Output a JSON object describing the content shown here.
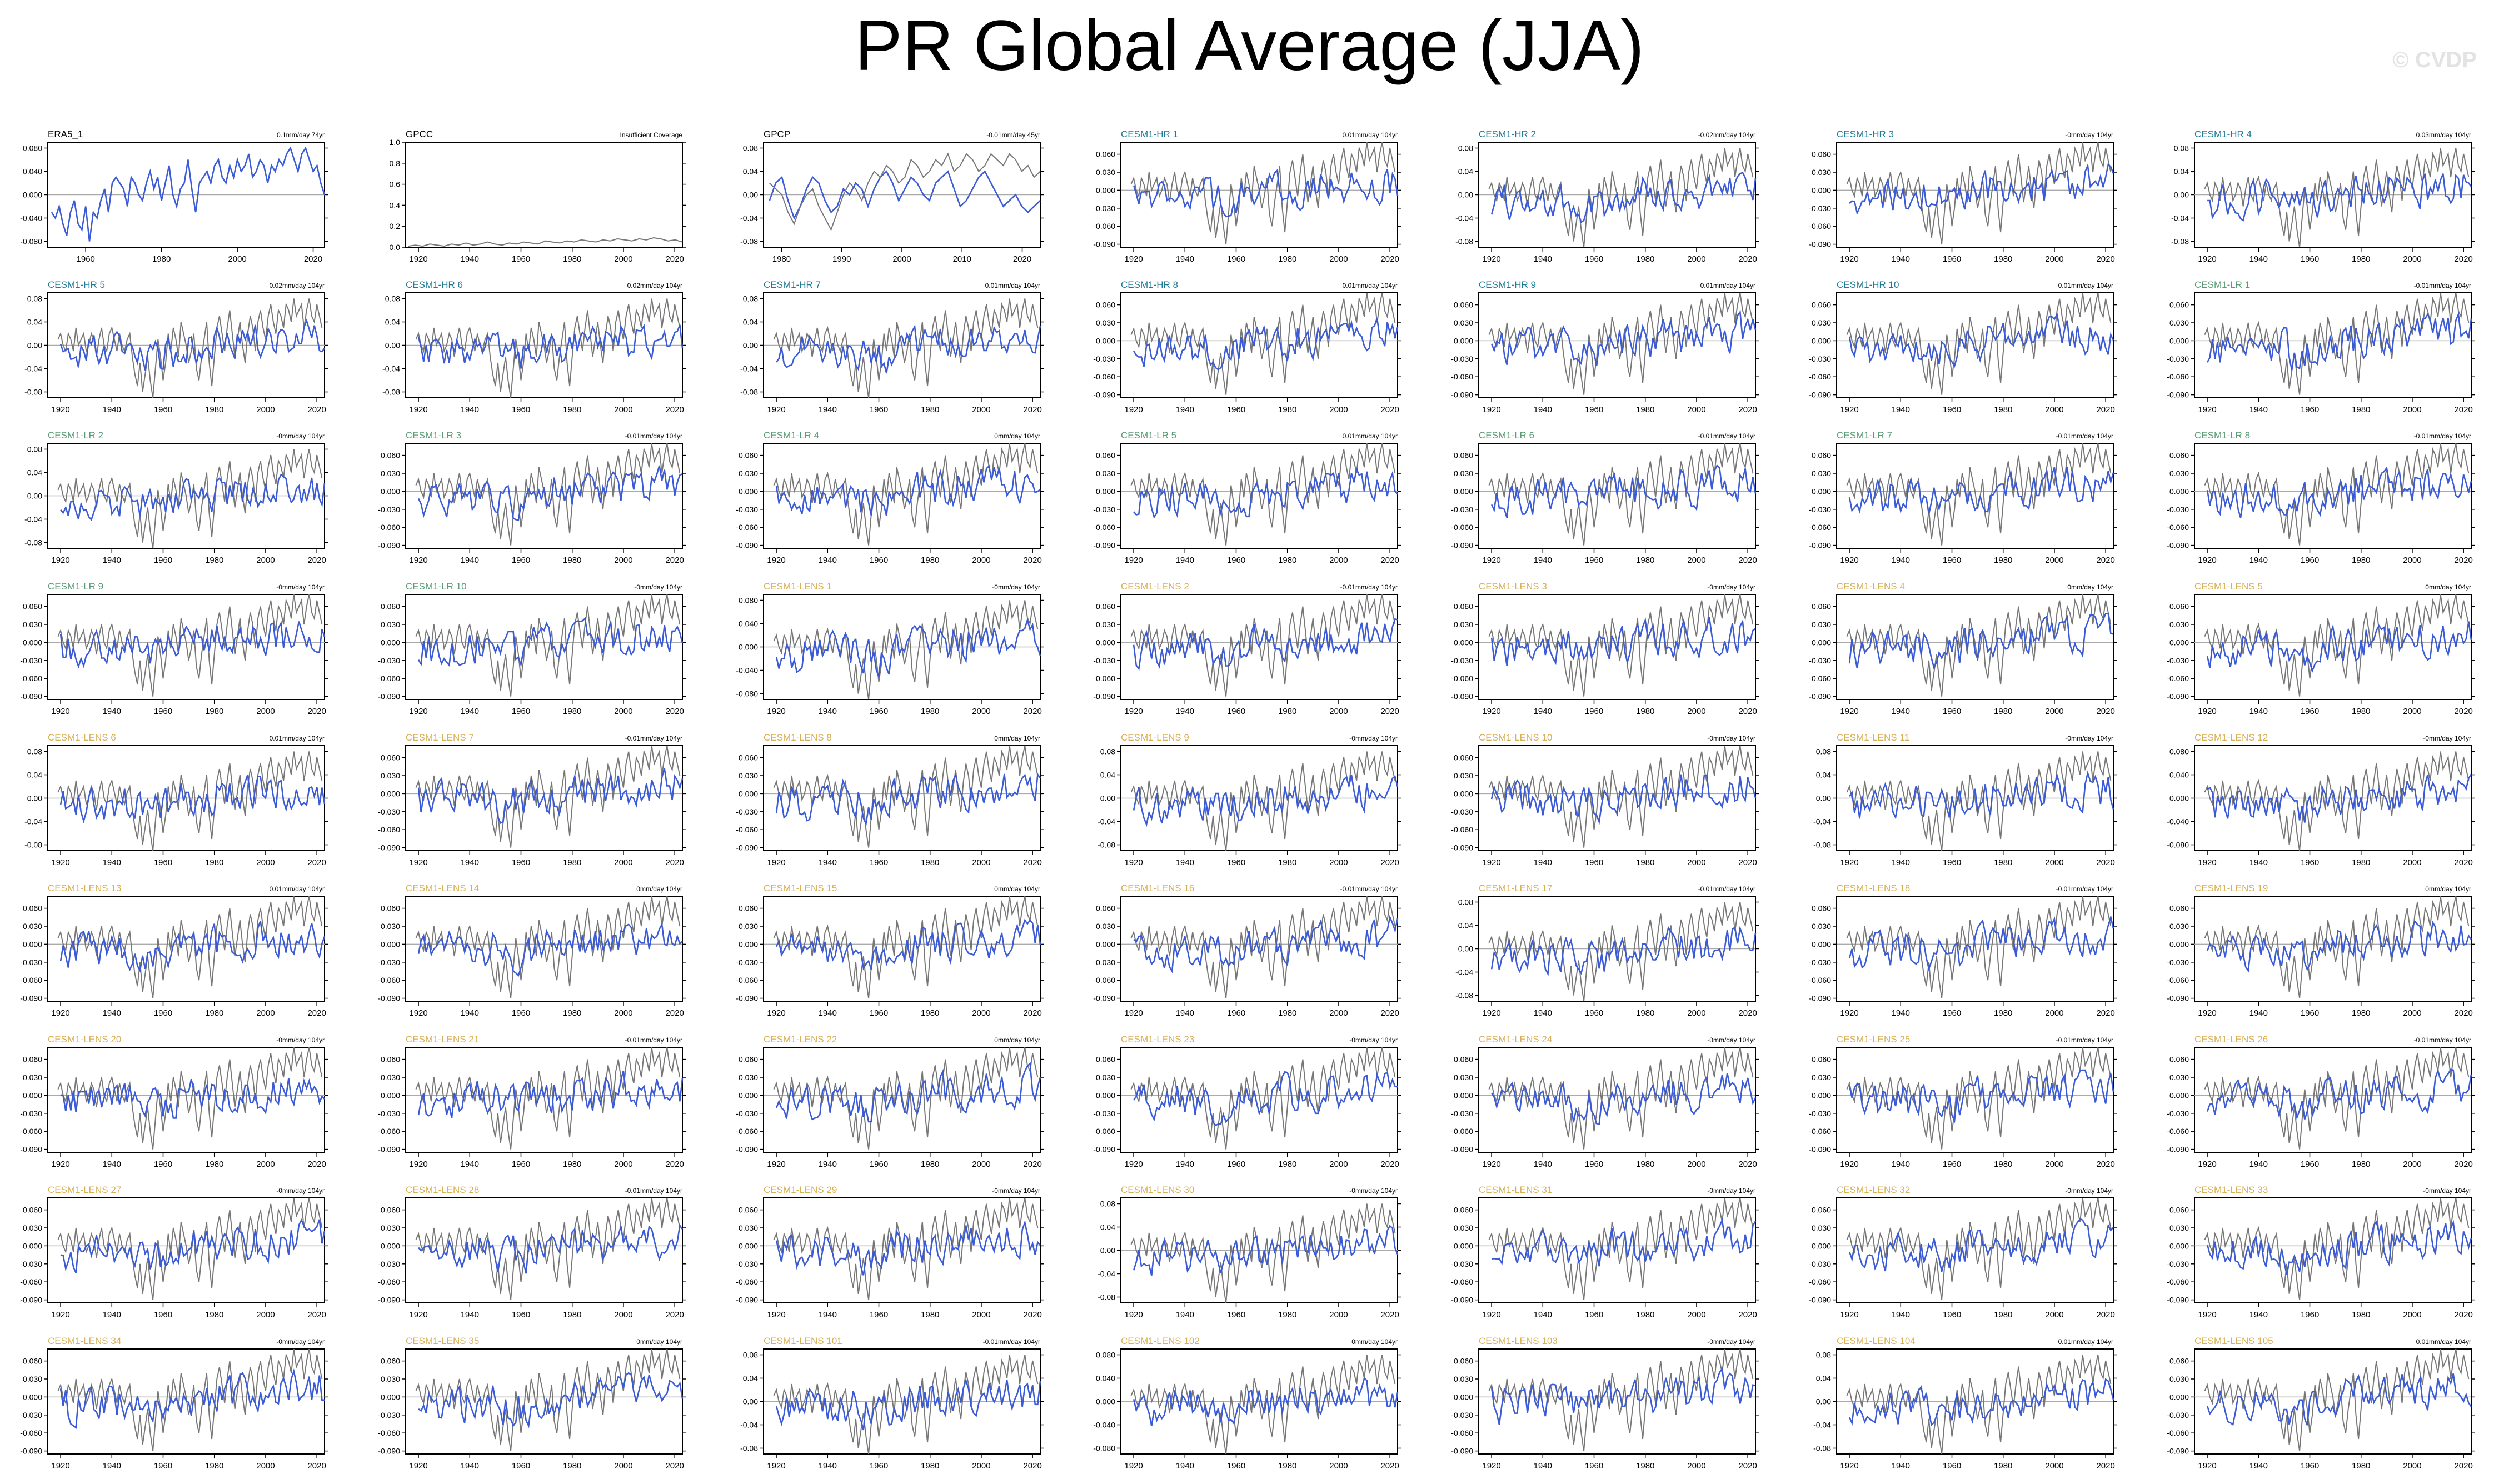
{
  "title": "PR Global Average (JJA)",
  "watermark": "© CVDP",
  "colors": {
    "model": "#3b5bd6",
    "obs": "#777777",
    "zero": "#aaaaaa",
    "label_obs": "#000000",
    "label_hr": "#1f7a96",
    "label_lr": "#5a9a74",
    "label_lens": "#d8b055"
  },
  "chart_data": [
    {
      "type": "line",
      "panel_title": "ERA5_1",
      "label_group": "obs",
      "trend": "0.1mm/day 74yr",
      "xticks": [
        1960,
        1980,
        2000,
        2020
      ],
      "xlim": [
        1950,
        2023
      ],
      "yticks": [
        "0.080",
        "0.040",
        "0.000",
        "-0.040",
        "-0.080"
      ],
      "ylim": [
        -0.09,
        0.09
      ],
      "series": [
        {
          "role": "model",
          "values": [
            -0.03,
            -0.04,
            -0.02,
            -0.05,
            -0.07,
            -0.03,
            -0.01,
            -0.05,
            -0.06,
            -0.02,
            -0.08,
            -0.03,
            -0.04,
            -0.01,
            0.01,
            -0.03,
            0.02,
            0.03,
            0.02,
            0.01,
            -0.02,
            0.03,
            0.02,
            0.0,
            -0.01,
            0.02,
            0.04,
            0.01,
            0.03,
            -0.01,
            0.02,
            0.05,
            0.0,
            -0.02,
            0.01,
            0.02,
            0.06,
            0.01,
            -0.03,
            0.02,
            0.03,
            0.04,
            0.02,
            0.05,
            0.06,
            0.03,
            0.02,
            0.05,
            0.03,
            0.06,
            0.04,
            0.05,
            0.07,
            0.03,
            0.04,
            0.06,
            0.05,
            0.02,
            0.05,
            0.04,
            0.06,
            0.05,
            0.07,
            0.08,
            0.06,
            0.04,
            0.07,
            0.08,
            0.06,
            0.04,
            0.05,
            0.02,
            0.0
          ]
        }
      ]
    },
    {
      "type": "line",
      "panel_title": "GPCC",
      "label_group": "obs",
      "trend": "Insufficient Coverage",
      "xticks": [
        1920,
        1940,
        1960,
        1980,
        2000,
        2020
      ],
      "xlim": [
        1915,
        2023
      ],
      "yticks": [
        "1.0",
        "0.8",
        "0.6",
        "0.4",
        "0.2",
        "0.0"
      ],
      "ylim": [
        0,
        1
      ],
      "series": [
        {
          "role": "obs",
          "values": [
            0.01,
            0.02,
            0.01,
            0.03,
            0.02,
            0.01,
            0.03,
            0.02,
            0.04,
            0.02,
            0.03,
            0.05,
            0.03,
            0.02,
            0.04,
            0.03,
            0.05,
            0.04,
            0.03,
            0.06,
            0.05,
            0.04,
            0.06,
            0.05,
            0.07,
            0.06,
            0.05,
            0.07,
            0.06,
            0.08,
            0.07,
            0.06,
            0.08,
            0.07,
            0.09,
            0.08,
            0.06,
            0.07,
            0.05
          ]
        }
      ]
    },
    {
      "type": "line",
      "panel_title": "GPCP",
      "label_group": "obs",
      "trend": "-0.01mm/day 45yr",
      "xticks": [
        1980,
        1990,
        2000,
        2010,
        2020
      ],
      "xlim": [
        1977,
        2023
      ],
      "yticks": [
        "0.08",
        "0.04",
        "0.00",
        "-0.04",
        "-0.08"
      ],
      "ylim": [
        -0.09,
        0.09
      ],
      "series": [
        {
          "role": "model",
          "values": [
            -0.01,
            0.02,
            0.03,
            -0.01,
            -0.04,
            -0.02,
            0.01,
            0.03,
            0.02,
            -0.01,
            -0.03,
            -0.02,
            0.01,
            0.0,
            0.02,
            0.01,
            -0.02,
            0.01,
            0.03,
            0.04,
            0.02,
            -0.01,
            0.01,
            0.03,
            0.02,
            0.0,
            -0.01,
            0.02,
            0.03,
            0.04,
            0.01,
            -0.02,
            -0.01,
            0.01,
            0.03,
            0.04,
            0.02,
            0.0,
            -0.02,
            -0.01,
            0.0,
            -0.02,
            -0.03,
            -0.02,
            -0.01
          ]
        },
        {
          "role": "obs",
          "values": [
            0.02,
            0.01,
            0.0,
            -0.03,
            -0.05,
            -0.02,
            0.0,
            0.01,
            -0.02,
            -0.04,
            -0.06,
            -0.03,
            0.0,
            0.02,
            0.01,
            -0.01,
            0.02,
            0.04,
            0.03,
            0.05,
            0.04,
            0.02,
            0.03,
            0.06,
            0.05,
            0.03,
            0.04,
            0.06,
            0.05,
            0.07,
            0.04,
            0.05,
            0.07,
            0.06,
            0.04,
            0.05,
            0.07,
            0.06,
            0.05,
            0.07,
            0.06,
            0.04,
            0.05,
            0.03,
            0.04
          ]
        }
      ]
    }
  ],
  "panel_titles": [
    "ERA5_1",
    "GPCC",
    "GPCP",
    "CESM1-HR 1",
    "CESM1-HR 2",
    "CESM1-HR 3",
    "CESM1-HR 4",
    "CESM1-HR 5",
    "CESM1-HR 6",
    "CESM1-HR 7",
    "CESM1-HR 8",
    "CESM1-HR 9",
    "CESM1-HR 10",
    "CESM1-LR 1",
    "CESM1-LR 2",
    "CESM1-LR 3",
    "CESM1-LR 4",
    "CESM1-LR 5",
    "CESM1-LR 6",
    "CESM1-LR 7",
    "CESM1-LR 8",
    "CESM1-LR 9",
    "CESM1-LR 10",
    "CESM1-LENS 1",
    "CESM1-LENS 2",
    "CESM1-LENS 3",
    "CESM1-LENS 4",
    "CESM1-LENS 5",
    "CESM1-LENS 6",
    "CESM1-LENS 7",
    "CESM1-LENS 8",
    "CESM1-LENS 9",
    "CESM1-LENS 10",
    "CESM1-LENS 11",
    "CESM1-LENS 12",
    "CESM1-LENS 13",
    "CESM1-LENS 14",
    "CESM1-LENS 15",
    "CESM1-LENS 16",
    "CESM1-LENS 17",
    "CESM1-LENS 18",
    "CESM1-LENS 19",
    "CESM1-LENS 20",
    "CESM1-LENS 21",
    "CESM1-LENS 22",
    "CESM1-LENS 23",
    "CESM1-LENS 24",
    "CESM1-LENS 25",
    "CESM1-LENS 26",
    "CESM1-LENS 27",
    "CESM1-LENS 28",
    "CESM1-LENS 29",
    "CESM1-LENS 30",
    "CESM1-LENS 31",
    "CESM1-LENS 32",
    "CESM1-LENS 33",
    "CESM1-LENS 34",
    "CESM1-LENS 35",
    "CESM1-LENS 101",
    "CESM1-LENS 102",
    "CESM1-LENS 103",
    "CESM1-LENS 104",
    "CESM1-LENS 105"
  ],
  "panel_trends": [
    "0.1mm/day 74yr",
    "Insufficient Coverage",
    "-0.01mm/day 45yr",
    "0.01mm/day 104yr",
    "-0.02mm/day 104yr",
    "-0mm/day 104yr",
    "0.03mm/day 104yr",
    "0.02mm/day 104yr",
    "0.02mm/day 104yr",
    "0.01mm/day 104yr",
    "0.01mm/day 104yr",
    "0.01mm/day 104yr",
    "0.01mm/day 104yr",
    "-0.01mm/day 104yr",
    "-0mm/day 104yr",
    "-0.01mm/day 104yr",
    "0mm/day 104yr",
    "0.01mm/day 104yr",
    "-0.01mm/day 104yr",
    "-0.01mm/day 104yr",
    "-0.01mm/day 104yr",
    "-0mm/day 104yr",
    "-0mm/day 104yr",
    "-0mm/day 104yr",
    "-0.01mm/day 104yr",
    "-0mm/day 104yr",
    "0mm/day 104yr",
    "0mm/day 104yr",
    "0.01mm/day 104yr",
    "-0.01mm/day 104yr",
    "0mm/day 104yr",
    "-0mm/day 104yr",
    "-0mm/day 104yr",
    "-0mm/day 104yr",
    "-0mm/day 104yr",
    "0.01mm/day 104yr",
    "0mm/day 104yr",
    "0mm/day 104yr",
    "-0.01mm/day 104yr",
    "-0.01mm/day 104yr",
    "-0.01mm/day 104yr",
    "0mm/day 104yr",
    "-0mm/day 104yr",
    "-0.01mm/day 104yr",
    "0mm/day 104yr",
    "-0mm/day 104yr",
    "-0mm/day 104yr",
    "-0.01mm/day 104yr",
    "-0.01mm/day 104yr",
    "-0mm/day 104yr",
    "-0.01mm/day 104yr",
    "-0mm/day 104yr",
    "-0mm/day 104yr",
    "-0mm/day 104yr",
    "-0mm/day 104yr",
    "-0mm/day 104yr",
    "-0mm/day 104yr",
    "0mm/day 104yr",
    "-0.01mm/day 104yr",
    "0mm/day 104yr",
    "-0mm/day 104yr",
    "0.01mm/day 104yr",
    "0.01mm/day 104yr"
  ],
  "panel_groups": [
    "obs",
    "obs",
    "obs",
    "hr",
    "hr",
    "hr",
    "hr",
    "hr",
    "hr",
    "hr",
    "hr",
    "hr",
    "hr",
    "lr",
    "lr",
    "lr",
    "lr",
    "lr",
    "lr",
    "lr",
    "lr",
    "lr",
    "lr",
    "lens",
    "lens",
    "lens",
    "lens",
    "lens",
    "lens",
    "lens",
    "lens",
    "lens",
    "lens",
    "lens",
    "lens",
    "lens",
    "lens",
    "lens",
    "lens",
    "lens",
    "lens",
    "lens",
    "lens",
    "lens",
    "lens",
    "lens",
    "lens",
    "lens",
    "lens",
    "lens",
    "lens",
    "lens",
    "lens",
    "lens",
    "lens",
    "lens",
    "lens",
    "lens",
    "lens",
    "lens",
    "lens",
    "lens",
    "lens"
  ],
  "model_panels": {
    "xlim": [
      1915,
      2023
    ],
    "xticks": [
      1920,
      1940,
      1960,
      1980,
      2000,
      2020
    ],
    "ytick_sets": {
      "A": [
        "0.060",
        "0.030",
        "0.000",
        "-0.030",
        "-0.060",
        "-0.090"
      ],
      "B": [
        "0.08",
        "0.04",
        "0.00",
        "-0.04",
        "-0.08"
      ],
      "C": [
        "0.080",
        "0.040",
        "0.000",
        "-0.040",
        "-0.080"
      ],
      "D": [
        "0.060",
        "0.030",
        "0.000",
        "-0.030",
        "-0.060",
        "-0.090"
      ]
    },
    "ylim": {
      "A": [
        -0.095,
        0.08
      ],
      "B": [
        -0.09,
        0.09
      ],
      "C": [
        -0.09,
        0.09
      ],
      "D": [
        -0.095,
        0.08
      ]
    },
    "panel_ytick_set": [
      "C",
      "-",
      "B",
      "A",
      "B",
      "A",
      "B",
      "B",
      "B",
      "B",
      "A",
      "A",
      "A",
      "A",
      "B",
      "A",
      "A",
      "A",
      "A",
      "A",
      "A",
      "A",
      "A",
      "C",
      "A",
      "A",
      "A",
      "A",
      "B",
      "A",
      "A",
      "B",
      "A",
      "B",
      "C",
      "A",
      "A",
      "A",
      "A",
      "B",
      "A",
      "A",
      "A",
      "A",
      "A",
      "A",
      "A",
      "A",
      "A",
      "A",
      "A",
      "A",
      "B",
      "A",
      "A",
      "A",
      "A",
      "A",
      "B",
      "C",
      "A",
      "B",
      "A"
    ]
  },
  "obs_reference_series": [
    0.01,
    0.02,
    0.0,
    -0.01,
    0.02,
    0.01,
    -0.01,
    0.03,
    0.0,
    0.01,
    0.02,
    -0.01,
    0.0,
    0.02,
    0.01,
    -0.02,
    0.01,
    0.03,
    0.0,
    -0.01,
    0.02,
    0.03,
    0.01,
    -0.01,
    0.02,
    0.0,
    -0.01,
    0.01,
    0.02,
    -0.02,
    -0.05,
    -0.07,
    -0.03,
    -0.08,
    -0.05,
    -0.02,
    -0.06,
    -0.09,
    -0.04,
    0.01,
    -0.02,
    -0.06,
    -0.03,
    0.02,
    -0.01,
    0.03,
    0.01,
    -0.02,
    0.04,
    0.02,
    0.0,
    -0.03,
    -0.01,
    0.02,
    -0.04,
    -0.06,
    -0.02,
    0.01,
    0.04,
    -0.03,
    -0.07,
    -0.02,
    0.03,
    0.05,
    0.02,
    -0.01,
    0.03,
    0.06,
    0.02,
    -0.02,
    0.01,
    0.04,
    0.0,
    -0.03,
    0.02,
    0.05,
    0.03,
    -0.01,
    0.04,
    0.06,
    0.03,
    0.01,
    0.05,
    0.07,
    0.04,
    0.02,
    0.06,
    0.05,
    0.03,
    0.07,
    0.06,
    0.04,
    0.08,
    0.05,
    0.06,
    0.07,
    0.03,
    0.06,
    0.08,
    0.05,
    0.04,
    0.07,
    0.05,
    0.03
  ]
}
